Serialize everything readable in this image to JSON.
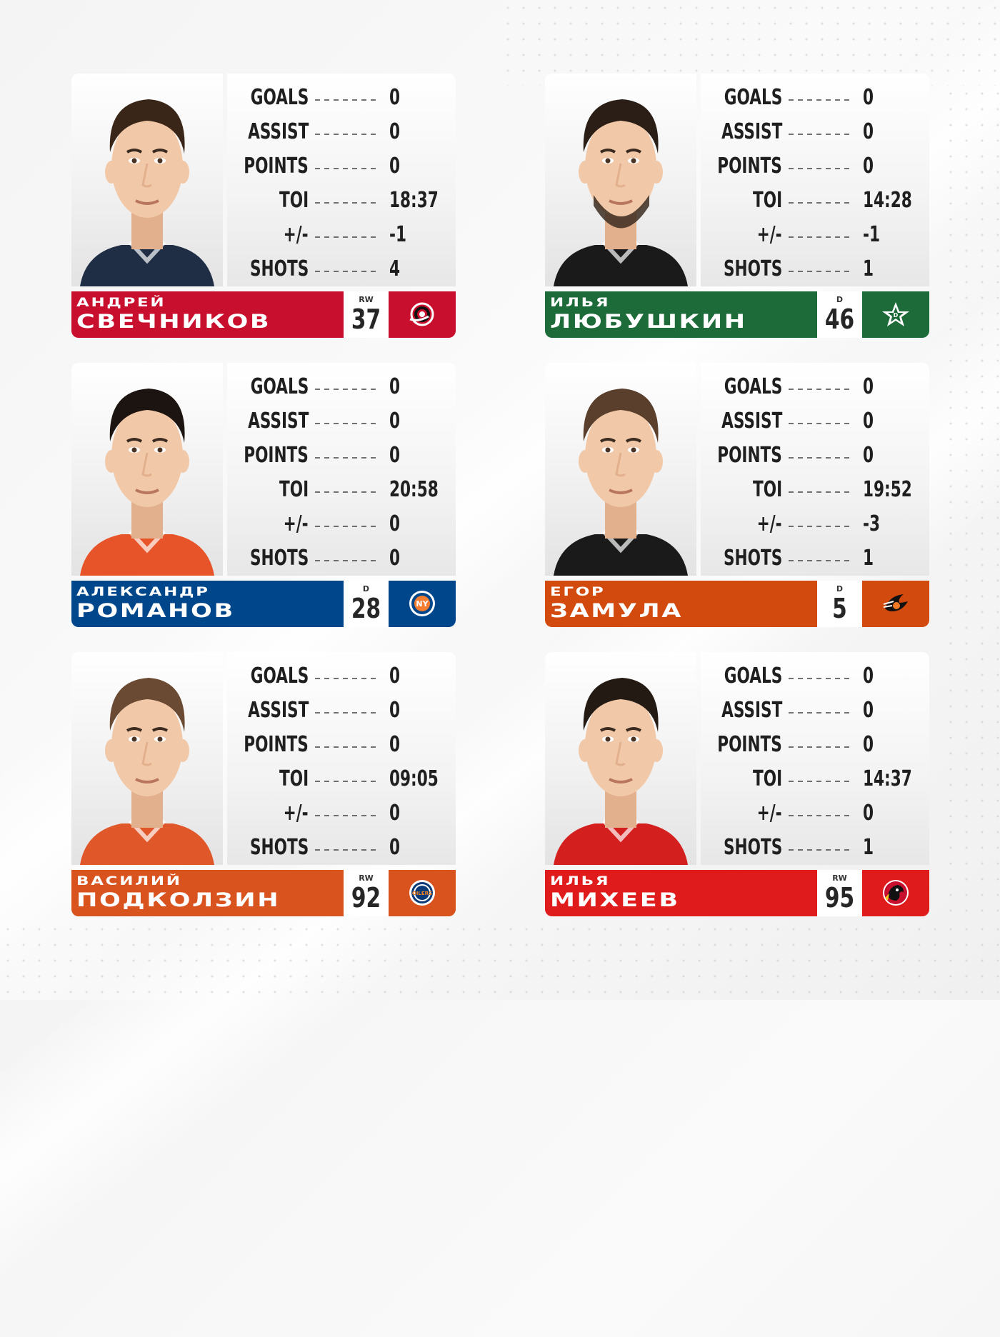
{
  "stat_labels": [
    "GOALS",
    "ASSIST",
    "POINTS",
    "TOI",
    "+/-",
    "SHOTS"
  ],
  "players": [
    {
      "first_name": "АНДРЕЙ",
      "last_name": "СВЕЧНИКОВ",
      "position": "RW",
      "number": "37",
      "team_color": "#c8102e",
      "team_logo": "carolina-hurricanes-logo",
      "hair_color": "#3a2618",
      "jersey_color": "#1f2d45",
      "has_beard": false,
      "stats": [
        "0",
        "0",
        "0",
        "18:37",
        "-1",
        "4"
      ]
    },
    {
      "first_name": "ИЛЬЯ",
      "last_name": "ЛЮБУШКИН",
      "position": "D",
      "number": "46",
      "team_color": "#1e6b3a",
      "team_logo": "dallas-stars-logo",
      "hair_color": "#2a1e16",
      "jersey_color": "#1a1a1a",
      "has_beard": true,
      "stats": [
        "0",
        "0",
        "0",
        "14:28",
        "-1",
        "1"
      ]
    },
    {
      "first_name": "АЛЕКСАНДР",
      "last_name": "РОМАНОВ",
      "position": "D",
      "number": "28",
      "team_color": "#00468b",
      "team_logo": "new-york-islanders-logo",
      "hair_color": "#1c1410",
      "jersey_color": "#e8542a",
      "has_beard": false,
      "stats": [
        "0",
        "0",
        "0",
        "20:58",
        "0",
        "0"
      ]
    },
    {
      "first_name": "ЕГОР",
      "last_name": "ЗАМУЛА",
      "position": "D",
      "number": "5",
      "team_color": "#d24a0d",
      "team_logo": "philadelphia-flyers-logo",
      "hair_color": "#5a3f2c",
      "jersey_color": "#1a1a1a",
      "has_beard": false,
      "stats": [
        "0",
        "0",
        "0",
        "19:52",
        "-3",
        "1"
      ]
    },
    {
      "first_name": "ВАСИЛИЙ",
      "last_name": "ПОДКОЛЗИН",
      "position": "RW",
      "number": "92",
      "team_color": "#d9531e",
      "team_logo": "edmonton-oilers-logo",
      "hair_color": "#6b4a33",
      "jersey_color": "#e0572a",
      "has_beard": false,
      "stats": [
        "0",
        "0",
        "0",
        "09:05",
        "0",
        "0"
      ]
    },
    {
      "first_name": "ИЛЬЯ",
      "last_name": "МИХЕЕВ",
      "position": "RW",
      "number": "95",
      "team_color": "#e01b1b",
      "team_logo": "chicago-blackhawks-logo",
      "hair_color": "#241a14",
      "jersey_color": "#d41f1f",
      "has_beard": false,
      "stats": [
        "0",
        "0",
        "0",
        "14:37",
        "0",
        "1"
      ]
    }
  ]
}
